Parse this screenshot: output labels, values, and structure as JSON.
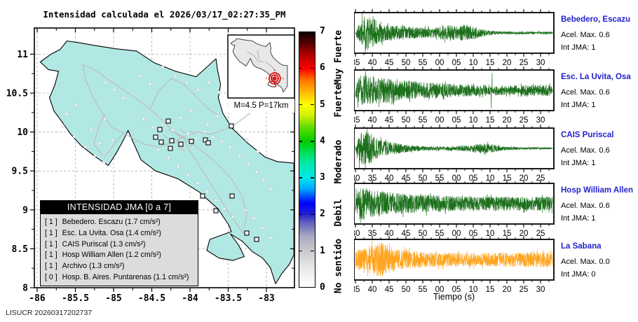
{
  "title": "Intensidad calculada el 2026/03/17_02:27:35_PM",
  "footer": "LISUCR 20260317202737",
  "tiempo_label": "Tiempo (s)",
  "colors": {
    "land": "#b2e8e4",
    "road": "#bdbdbd",
    "wave_green": "#1c701c",
    "wave_orange": "#ffa41c",
    "station_blue": "#2222cc",
    "epicenter_red": "#dd0000"
  },
  "chart_data": [
    {
      "type": "map",
      "region": "Costa Rica",
      "x_ticks": [
        "-86",
        "-85.5",
        "-85",
        "-84.5",
        "-84",
        "-83.5",
        "-83"
      ],
      "y_ticks": [
        "11",
        "10.5",
        "10",
        "9.5",
        "9",
        "8.5",
        "8"
      ],
      "xlim": [
        -86.037,
        -82.633
      ],
      "ylim": [
        8,
        11.336
      ],
      "grid": true,
      "legend_title": "INTENSIDAD JMA [0 a 7]",
      "legend_entries": [
        {
          "value": "[ 1 ]",
          "label": "Bebedero. Escazu (1.7 cm/s²)"
        },
        {
          "value": "[ 1 ]",
          "label": "Esc. La Uvita. Osa (1.4 cm/s²)"
        },
        {
          "value": "[ 1 ]",
          "label": "CAIS Puriscal (1.3 cm/s²)"
        },
        {
          "value": "[ 1 ]",
          "label": "Hosp William Allen (1.2 cm/s²)"
        },
        {
          "value": "[ 1 ]",
          "label": "Archivo (1.3 cm/s²)"
        },
        {
          "value": "[ 0 ]",
          "label": "Hosp. B. Aires. Puntarenas (1.1 cm/s²)"
        }
      ],
      "inset_caption": "M=4.5 P=17km",
      "epicenter": {
        "magnitude_label": "M=4.5",
        "depth_label": "P=17km",
        "lon": -83.38,
        "lat": 8.85
      },
      "station_dots": [
        [
          150,
          118
        ],
        [
          163,
          128
        ],
        [
          176,
          140
        ],
        [
          108,
          150
        ],
        [
          95,
          163
        ],
        [
          90,
          180
        ],
        [
          106,
          195
        ],
        [
          122,
          210
        ],
        [
          136,
          222
        ],
        [
          148,
          232
        ],
        [
          130,
          185
        ],
        [
          150,
          170
        ],
        [
          160,
          200
        ],
        [
          142,
          205
        ],
        [
          200,
          108
        ],
        [
          214,
          120
        ],
        [
          232,
          96
        ],
        [
          250,
          108
        ],
        [
          266,
          118
        ],
        [
          282,
          128
        ],
        [
          298,
          118
        ],
        [
          312,
          132
        ],
        [
          326,
          148
        ],
        [
          205,
          170
        ],
        [
          218,
          182
        ],
        [
          232,
          178
        ],
        [
          246,
          186
        ],
        [
          268,
          192
        ],
        [
          280,
          198
        ],
        [
          292,
          188
        ],
        [
          304,
          196
        ],
        [
          316,
          202
        ],
        [
          328,
          210
        ],
        [
          342,
          222
        ],
        [
          354,
          234
        ],
        [
          366,
          246
        ],
        [
          376,
          258
        ],
        [
          386,
          270
        ],
        [
          352,
          200
        ],
        [
          368,
          216
        ],
        [
          296,
          178
        ],
        [
          310,
          166
        ],
        [
          258,
          168
        ],
        [
          272,
          158
        ],
        [
          226,
          214
        ],
        [
          240,
          226
        ],
        [
          254,
          238
        ],
        [
          268,
          250
        ],
        [
          282,
          262
        ],
        [
          296,
          274
        ],
        [
          308,
          286
        ],
        [
          320,
          298
        ],
        [
          332,
          310
        ],
        [
          350,
          300
        ],
        [
          362,
          312
        ],
        [
          374,
          326
        ],
        [
          386,
          340
        ]
      ],
      "intensity_squares": [
        [
          240,
          173
        ],
        [
          228,
          185
        ],
        [
          222,
          196
        ],
        [
          245,
          201
        ],
        [
          230,
          203
        ],
        [
          243,
          212
        ],
        [
          258,
          206
        ],
        [
          273,
          202
        ],
        [
          293,
          200
        ],
        [
          297,
          204
        ],
        [
          330,
          180
        ],
        [
          289,
          280
        ],
        [
          331,
          280
        ],
        [
          308,
          301
        ],
        [
          366,
          342
        ],
        [
          352,
          333
        ]
      ]
    },
    {
      "type": "colorbar",
      "scale_name": "Intensidad JMA",
      "range": [
        0,
        7
      ],
      "ticks": [
        0,
        1,
        2,
        3,
        4,
        5,
        6,
        7
      ],
      "category_labels": [
        {
          "text": "Muy Fuerte",
          "value": 6.3
        },
        {
          "text": "Fuerte",
          "value": 5.1
        },
        {
          "text": "Moderado",
          "value": 3.45
        },
        {
          "text": "Debil",
          "value": 2.05
        },
        {
          "text": "No sentido",
          "value": 0.6
        }
      ],
      "gradient_stops": [
        [
          0,
          "#ffffff"
        ],
        [
          0.5,
          "#e9e9e9"
        ],
        [
          1,
          "#c9c9cd"
        ],
        [
          1.4,
          "#a9a9c2"
        ],
        [
          1.8,
          "#5a5abd"
        ],
        [
          2,
          "#2020d0"
        ],
        [
          2.3,
          "#0000ff"
        ],
        [
          2.7,
          "#00aaff"
        ],
        [
          3,
          "#00e8e8"
        ],
        [
          3.4,
          "#00e8a8"
        ],
        [
          3.7,
          "#00dd55"
        ],
        [
          4,
          "#00cc00"
        ],
        [
          4.4,
          "#66dd00"
        ],
        [
          4.7,
          "#ccee00"
        ],
        [
          5,
          "#ffff00"
        ],
        [
          5.4,
          "#ffb000"
        ],
        [
          5.7,
          "#ff7000"
        ],
        [
          6,
          "#ff0000"
        ],
        [
          6.4,
          "#aa0000"
        ],
        [
          6.7,
          "#550000"
        ],
        [
          7,
          "#100000"
        ]
      ]
    },
    {
      "type": "seismogram",
      "station": "Bebedero, Escazu",
      "acel_max_label": "Acel. Max. 0.6",
      "acel_max_value": 0.6,
      "int_jma_label": "Int JMA: 1",
      "int_jma_value": 1,
      "color": "green",
      "seed": 101,
      "x_ticks": [
        "35",
        "40",
        "45",
        "50",
        "55",
        "00",
        "05",
        "10",
        "15",
        "20",
        "25",
        "30"
      ],
      "envelope": [
        [
          0,
          0.08
        ],
        [
          0.02,
          0.55
        ],
        [
          0.05,
          1.0
        ],
        [
          0.09,
          0.85
        ],
        [
          0.15,
          0.45
        ],
        [
          0.25,
          0.38
        ],
        [
          0.33,
          0.3
        ],
        [
          0.4,
          0.28
        ],
        [
          0.47,
          0.45
        ],
        [
          0.52,
          0.4
        ],
        [
          0.56,
          0.48
        ],
        [
          0.62,
          0.3
        ],
        [
          0.68,
          0.12
        ],
        [
          0.75,
          0.08
        ],
        [
          1,
          0.07
        ]
      ],
      "spikes": [
        [
          0.035,
          1.1
        ],
        [
          0.05,
          -1.05
        ]
      ]
    },
    {
      "type": "seismogram",
      "station": "Esc. La Uvita, Osa",
      "acel_max_label": "Acel. Max. 0.6",
      "acel_max_value": 0.6,
      "int_jma_label": "Int JMA: 1",
      "int_jma_value": 1,
      "color": "green",
      "seed": 202,
      "x_ticks": [
        "35",
        "40",
        "45",
        "50",
        "55",
        "00",
        "05",
        "10",
        "15",
        "20",
        "25",
        "30"
      ],
      "envelope": [
        [
          0,
          0.5
        ],
        [
          0.03,
          0.85
        ],
        [
          0.08,
          0.75
        ],
        [
          0.15,
          0.7
        ],
        [
          0.25,
          0.55
        ],
        [
          0.35,
          0.45
        ],
        [
          0.45,
          0.4
        ],
        [
          0.55,
          0.35
        ],
        [
          0.65,
          0.3
        ],
        [
          0.75,
          0.28
        ],
        [
          0.85,
          0.28
        ],
        [
          1,
          0.3
        ]
      ],
      "spikes": [
        [
          0.012,
          -0.9
        ],
        [
          0.69,
          -0.95
        ],
        [
          0.694,
          0.9
        ]
      ]
    },
    {
      "type": "seismogram",
      "station": "CAIS Puriscal",
      "acel_max_label": "Acel. Max. 0.6",
      "acel_max_value": 0.6,
      "int_jma_label": "Int JMA: 1",
      "int_jma_value": 1,
      "color": "green",
      "seed": 303,
      "x_ticks": [
        "30",
        "35",
        "40",
        "45",
        "50",
        "55",
        "00",
        "05",
        "10",
        "15",
        "20",
        "25"
      ],
      "envelope": [
        [
          0,
          0.15
        ],
        [
          0.02,
          0.7
        ],
        [
          0.04,
          1.0
        ],
        [
          0.08,
          0.8
        ],
        [
          0.12,
          0.5
        ],
        [
          0.18,
          0.35
        ],
        [
          0.25,
          0.22
        ],
        [
          0.35,
          0.12
        ],
        [
          0.45,
          0.1
        ],
        [
          0.52,
          0.14
        ],
        [
          0.58,
          0.18
        ],
        [
          0.62,
          0.25
        ],
        [
          0.66,
          0.3
        ],
        [
          0.7,
          0.25
        ],
        [
          0.74,
          0.12
        ],
        [
          0.85,
          0.06
        ],
        [
          1,
          0.05
        ]
      ],
      "spikes": [
        [
          0.02,
          -1.1
        ],
        [
          0.05,
          -1.05
        ]
      ]
    },
    {
      "type": "seismogram",
      "station": "Hosp William Allen",
      "acel_max_label": "Acel. Max. 0.6",
      "acel_max_value": 0.6,
      "int_jma_label": "Int JMA: 1",
      "int_jma_value": 1,
      "color": "green",
      "seed": 404,
      "x_ticks": [
        "30",
        "35",
        "40",
        "45",
        "50",
        "55",
        "00",
        "05",
        "10",
        "15",
        "20",
        "25"
      ],
      "envelope": [
        [
          0,
          0.6
        ],
        [
          0.03,
          0.9
        ],
        [
          0.08,
          0.8
        ],
        [
          0.15,
          0.65
        ],
        [
          0.25,
          0.55
        ],
        [
          0.35,
          0.5
        ],
        [
          0.5,
          0.42
        ],
        [
          0.65,
          0.4
        ],
        [
          0.8,
          0.38
        ],
        [
          1,
          0.4
        ]
      ],
      "spikes": []
    },
    {
      "type": "seismogram",
      "station": "La Sabana",
      "acel_max_label": "Acel. Max. 0.0",
      "acel_max_value": 0.0,
      "int_jma_label": "Int JMA: 0",
      "int_jma_value": 0,
      "color": "orange",
      "seed": 505,
      "x_ticks": [
        "35",
        "40",
        "45",
        "50",
        "55",
        "00",
        "05",
        "10",
        "15",
        "20",
        "25",
        "30"
      ],
      "envelope": [
        [
          0,
          0.55
        ],
        [
          0.05,
          0.65
        ],
        [
          0.1,
          0.9
        ],
        [
          0.13,
          1.0
        ],
        [
          0.18,
          0.7
        ],
        [
          0.25,
          0.55
        ],
        [
          0.35,
          0.42
        ],
        [
          0.5,
          0.4
        ],
        [
          0.65,
          0.38
        ],
        [
          0.8,
          0.4
        ],
        [
          1,
          0.42
        ]
      ],
      "spikes": []
    }
  ]
}
